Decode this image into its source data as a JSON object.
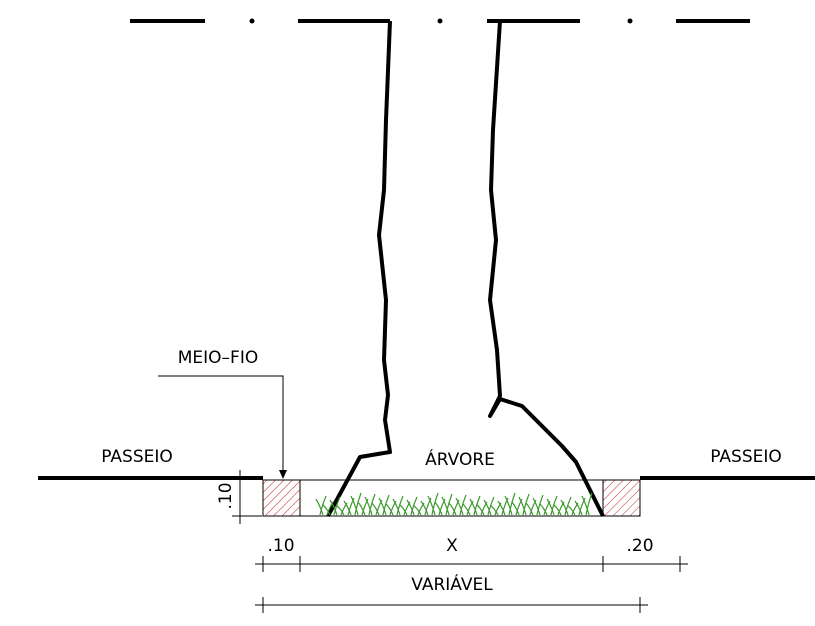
{
  "labels": {
    "meio_fio": "MEIO–FIO",
    "passeio_left": "PASSEIO",
    "arvore": "ÁRVORE",
    "passeio_right": "PASSEIO"
  },
  "dimensions": {
    "height": ".10",
    "left_width": ".10",
    "middle": "X",
    "right_width": ".20",
    "total": "VARIÁVEL"
  }
}
